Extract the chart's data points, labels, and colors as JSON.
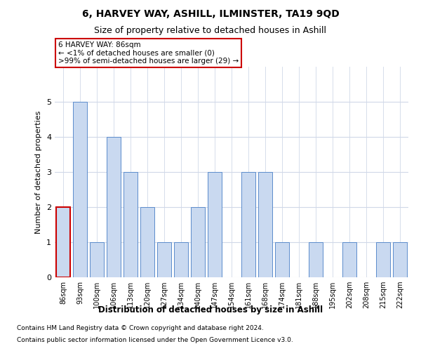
{
  "title1": "6, HARVEY WAY, ASHILL, ILMINSTER, TA19 9QD",
  "title2": "Size of property relative to detached houses in Ashill",
  "xlabel": "Distribution of detached houses by size in Ashill",
  "ylabel": "Number of detached properties",
  "categories": [
    "86sqm",
    "93sqm",
    "100sqm",
    "106sqm",
    "113sqm",
    "120sqm",
    "127sqm",
    "134sqm",
    "140sqm",
    "147sqm",
    "154sqm",
    "161sqm",
    "168sqm",
    "174sqm",
    "181sqm",
    "188sqm",
    "195sqm",
    "202sqm",
    "208sqm",
    "215sqm",
    "222sqm"
  ],
  "values": [
    2,
    5,
    1,
    4,
    3,
    2,
    1,
    1,
    2,
    3,
    0,
    3,
    3,
    1,
    0,
    1,
    0,
    1,
    0,
    1,
    1
  ],
  "bar_color": "#c9d9f0",
  "bar_edge_color": "#5b8ccc",
  "highlight_index": 0,
  "highlight_bar_edge_color": "#cc0000",
  "annotation_text": "6 HARVEY WAY: 86sqm\n← <1% of detached houses are smaller (0)\n>99% of semi-detached houses are larger (29) →",
  "annotation_box_color": "#ffffff",
  "annotation_box_edge_color": "#cc0000",
  "ylim": [
    0,
    6
  ],
  "yticks": [
    0,
    1,
    2,
    3,
    4,
    5
  ],
  "footnote1": "Contains HM Land Registry data © Crown copyright and database right 2024.",
  "footnote2": "Contains public sector information licensed under the Open Government Licence v3.0.",
  "background_color": "#ffffff",
  "grid_color": "#d0d8e8"
}
